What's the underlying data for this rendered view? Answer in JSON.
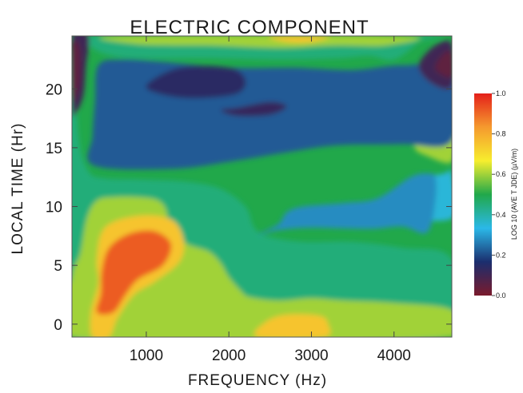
{
  "chart_data": {
    "type": "heatmap",
    "title": "ELECTRIC COMPONENT",
    "xlabel": "FREQUENCY (Hz)",
    "ylabel": "LOCAL TIME (Hr)",
    "xlim": [
      100,
      4700
    ],
    "ylim": [
      -1.1,
      24.5
    ],
    "x_ticks": [
      1000,
      2000,
      3000,
      4000
    ],
    "y_ticks": [
      0,
      5,
      10,
      15,
      20
    ],
    "colorbar": {
      "label": "LOG 10 (AVE T JDE) (µV/m)",
      "ticks": [
        "1.0",
        "0.8",
        "0.6",
        "0.4",
        "0.2",
        "0.0"
      ],
      "tick_values": [
        1.0,
        0.8,
        0.6,
        0.4,
        0.2,
        0.0
      ],
      "range": [
        0.0,
        1.0
      ],
      "colors": [
        "#7a1a2c",
        "#1b2e6e",
        "#2bb8e8",
        "#21a84a",
        "#f7ee2e",
        "#f59a2e",
        "#e4201a"
      ]
    },
    "contours": [
      {
        "level": 0.45,
        "points": [
          [
            100,
            -1.1
          ],
          [
            4700,
            -1.1
          ],
          [
            4700,
            5.5
          ],
          [
            4100,
            6.5
          ],
          [
            3500,
            7
          ],
          [
            2900,
            7
          ],
          [
            2450,
            7.5
          ],
          [
            2300,
            8.3
          ],
          [
            2200,
            10
          ],
          [
            1900,
            11.5
          ],
          [
            1500,
            12.1
          ],
          [
            950,
            12.3
          ],
          [
            500,
            12.4
          ],
          [
            300,
            13
          ],
          [
            180,
            16
          ],
          [
            100,
            24.5
          ]
        ]
      },
      {
        "level": 0.45,
        "points": [
          [
            350,
            24.5
          ],
          [
            350,
            23.5
          ],
          [
            600,
            22.8
          ],
          [
            1000,
            22.6
          ],
          [
            1800,
            22.6
          ],
          [
            2600,
            22.5
          ],
          [
            3300,
            22.6
          ],
          [
            3700,
            22.8
          ],
          [
            4000,
            22.5
          ],
          [
            4300,
            24
          ],
          [
            4300,
            24.5
          ]
        ]
      },
      {
        "level": 0.6,
        "points": [
          [
            100,
            -1.1
          ],
          [
            4700,
            -1.1
          ],
          [
            4700,
            1.2
          ],
          [
            4000,
            1.8
          ],
          [
            3400,
            2
          ],
          [
            3000,
            2.2
          ],
          [
            2600,
            2
          ],
          [
            2250,
            2.3
          ],
          [
            2150,
            2.8
          ],
          [
            2000,
            4
          ],
          [
            1900,
            5.2
          ],
          [
            1750,
            6.2
          ],
          [
            1500,
            6.8
          ],
          [
            1250,
            8
          ],
          [
            1250,
            9.5
          ],
          [
            1150,
            10.5
          ],
          [
            900,
            10.8
          ],
          [
            600,
            10.8
          ],
          [
            400,
            10.5
          ],
          [
            280,
            9
          ],
          [
            200,
            6
          ],
          [
            100,
            4
          ]
        ]
      },
      {
        "level": 0.6,
        "points": [
          [
            650,
            24.5
          ],
          [
            900,
            23.8
          ],
          [
            1800,
            23.7
          ],
          [
            2600,
            23.5
          ],
          [
            3300,
            23.7
          ],
          [
            3900,
            23.7
          ],
          [
            4100,
            24.5
          ]
        ]
      },
      {
        "level": 0.6,
        "points": [
          [
            4700,
            13.8
          ],
          [
            4400,
            14.3
          ],
          [
            4250,
            15
          ],
          [
            4350,
            16.2
          ],
          [
            4700,
            16.5
          ]
        ]
      },
      {
        "level": 0.75,
        "points": [
          [
            2350,
            -1.1
          ],
          [
            2450,
            0.2
          ],
          [
            2700,
            0.8
          ],
          [
            3100,
            0.7
          ],
          [
            3200,
            0
          ],
          [
            3150,
            -1.1
          ]
        ]
      },
      {
        "level": 0.75,
        "points": [
          [
            2500,
            24.5
          ],
          [
            2700,
            24
          ],
          [
            3000,
            24
          ],
          [
            3200,
            24.5
          ]
        ]
      },
      {
        "level": 0.75,
        "points": [
          [
            350,
            -1.1
          ],
          [
            330,
            1
          ],
          [
            420,
            3.5
          ],
          [
            400,
            5.5
          ],
          [
            500,
            8.2
          ],
          [
            900,
            9.2
          ],
          [
            1300,
            8.9
          ],
          [
            1450,
            7.2
          ],
          [
            1400,
            5.3
          ],
          [
            1100,
            3.6
          ],
          [
            850,
            2.5
          ],
          [
            650,
            0.5
          ],
          [
            550,
            -1.1
          ]
        ]
      },
      {
        "level": 0.92,
        "points": [
          [
            400,
            1
          ],
          [
            450,
            2.6
          ],
          [
            460,
            4.5
          ],
          [
            550,
            6.5
          ],
          [
            800,
            7.7
          ],
          [
            1100,
            7.9
          ],
          [
            1300,
            6.8
          ],
          [
            1200,
            5
          ],
          [
            900,
            3.8
          ],
          [
            750,
            2.5
          ],
          [
            600,
            1
          ]
        ]
      },
      {
        "level": 0.35,
        "points": [
          [
            4000,
            9.5
          ],
          [
            4200,
            12
          ],
          [
            4600,
            12.8
          ],
          [
            4700,
            12.8
          ],
          [
            4700,
            9
          ]
        ]
      },
      {
        "level": 0.28,
        "points": [
          [
            2350,
            7.6
          ],
          [
            2600,
            8.5
          ],
          [
            2700,
            9.5
          ],
          [
            2900,
            10
          ],
          [
            3400,
            10.3
          ],
          [
            3800,
            10.7
          ],
          [
            4200,
            12.5
          ],
          [
            4400,
            12.8
          ],
          [
            4500,
            12.5
          ],
          [
            4500,
            10.5
          ],
          [
            4400,
            7.8
          ],
          [
            4100,
            8.3
          ],
          [
            3700,
            8.1
          ],
          [
            3000,
            8.2
          ],
          [
            2600,
            8
          ]
        ]
      },
      {
        "level": 0.22,
        "points": [
          [
            360,
            13.5
          ],
          [
            1300,
            13.2
          ],
          [
            2000,
            13.8
          ],
          [
            2700,
            14.6
          ],
          [
            3300,
            15.2
          ],
          [
            4100,
            15.3
          ],
          [
            4700,
            15.6
          ],
          [
            4700,
            21.5
          ],
          [
            4100,
            22
          ],
          [
            3500,
            21.6
          ],
          [
            2800,
            21.8
          ],
          [
            2000,
            21.8
          ],
          [
            1200,
            22.3
          ],
          [
            700,
            22.5
          ],
          [
            420,
            22
          ],
          [
            380,
            19
          ],
          [
            350,
            16
          ]
        ]
      },
      {
        "level": 0.14,
        "points": [
          [
            1000,
            20.3
          ],
          [
            1400,
            21.8
          ],
          [
            2000,
            21.8
          ],
          [
            2200,
            20.8
          ],
          [
            2100,
            19.6
          ],
          [
            1600,
            19.2
          ],
          [
            1200,
            19.5
          ]
        ]
      },
      {
        "level": 0.12,
        "points": [
          [
            1900,
            18.2
          ],
          [
            2100,
            18.4
          ],
          [
            2500,
            18.9
          ],
          [
            2700,
            18.5
          ],
          [
            2500,
            17.8
          ],
          [
            2100,
            17.7
          ]
        ]
      },
      {
        "level": 0.1,
        "points": [
          [
            100,
            24.5
          ],
          [
            300,
            24.5
          ],
          [
            270,
            22
          ],
          [
            240,
            19.5
          ],
          [
            150,
            18
          ],
          [
            100,
            18.2
          ]
        ]
      },
      {
        "level": 0.1,
        "points": [
          [
            4450,
            20.5
          ],
          [
            4300,
            22
          ],
          [
            4500,
            23.7
          ],
          [
            4700,
            23.8
          ],
          [
            4700,
            20.2
          ]
        ]
      },
      {
        "level": 0.05,
        "points": [
          [
            100,
            23.8
          ],
          [
            190,
            23.5
          ],
          [
            200,
            21
          ],
          [
            160,
            19.5
          ],
          [
            100,
            19.2
          ]
        ]
      },
      {
        "level": 0.05,
        "points": [
          [
            4500,
            21.7
          ],
          [
            4600,
            23
          ],
          [
            4700,
            23
          ],
          [
            4700,
            21
          ]
        ]
      }
    ]
  }
}
